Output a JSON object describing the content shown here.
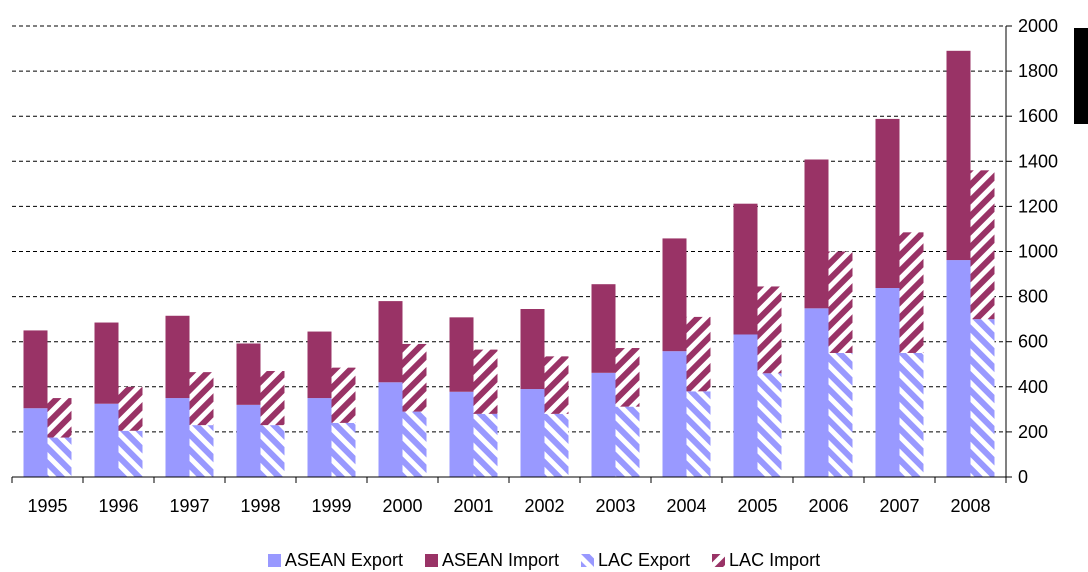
{
  "chart_data": {
    "type": "bar",
    "categories": [
      "1995",
      "1996",
      "1997",
      "1998",
      "1999",
      "2000",
      "2001",
      "2002",
      "2003",
      "2004",
      "2005",
      "2006",
      "2007",
      "2008"
    ],
    "series": [
      {
        "name": "ASEAN Export",
        "stack": "ASEAN",
        "style": "solid",
        "color": "#9999ff",
        "values": [
          305,
          325,
          350,
          320,
          350,
          420,
          378,
          390,
          462,
          558,
          632,
          748,
          838,
          962
        ]
      },
      {
        "name": "ASEAN Import",
        "stack": "ASEAN",
        "style": "solid",
        "color": "#993366",
        "values": [
          345,
          360,
          365,
          272,
          295,
          360,
          330,
          355,
          393,
          500,
          580,
          660,
          750,
          928
        ]
      },
      {
        "name": "LAC Export",
        "stack": "LAC",
        "style": "hatched",
        "color": "#9999ff",
        "values": [
          175,
          205,
          230,
          230,
          240,
          290,
          280,
          280,
          312,
          380,
          460,
          550,
          550,
          700
        ]
      },
      {
        "name": "LAC Import",
        "stack": "LAC",
        "style": "hatched",
        "color": "#993366",
        "values": [
          175,
          195,
          235,
          240,
          245,
          300,
          285,
          255,
          260,
          330,
          385,
          450,
          535,
          660
        ]
      }
    ],
    "y_axis": {
      "position": "right",
      "ylim": [
        0,
        2000
      ],
      "ticks": [
        "0",
        "200",
        "400",
        "600",
        "800",
        "1000",
        "1200",
        "1400",
        "1600",
        "1800",
        "2000"
      ]
    },
    "grid": "horizontal dashed",
    "legend_position": "bottom",
    "title": "",
    "xlabel": "",
    "ylabel": ""
  }
}
